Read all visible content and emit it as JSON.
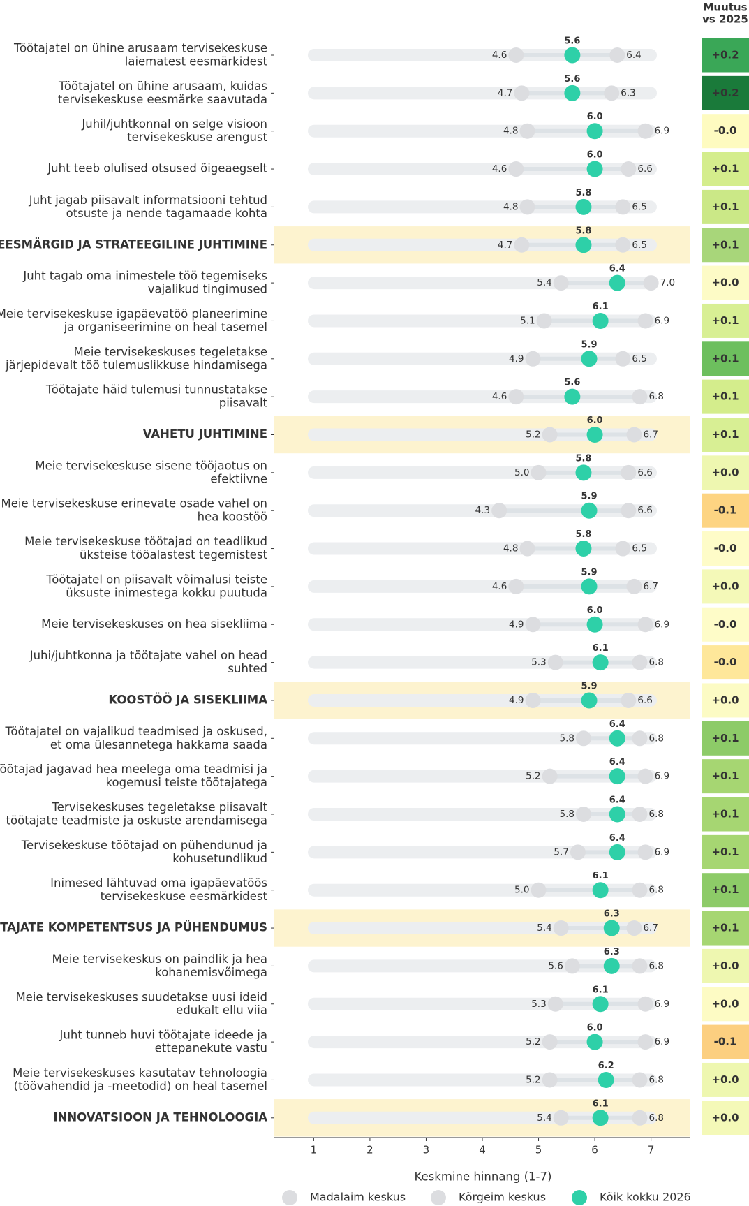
{
  "chart_data": {
    "type": "dumbbell",
    "xlabel": "Keskmine hinnang (1-7)",
    "xlim": [
      0.3,
      7.7
    ],
    "xticks": [
      1,
      2,
      3,
      4,
      5,
      6,
      7
    ],
    "categories": [
      "Töötajatel on ühine arusaam tervisekeskuse\nlaiematest eesmärkidest",
      "Töötajatel on ühine arusaam, kuidas\ntervisekeskuse eesmärke saavutada",
      "Juhil/juhtkonnal on selge visioon\ntervisekeskuse arengust",
      "Juht teeb olulised otsused õigeaegselt",
      "Juht jagab piisavalt informatsiooni tehtud\notsuste ja nende tagamaade kohta",
      "EESMÄRGID JA STRATEEGILINE JUHTIMINE",
      "Juht tagab oma inimestele töö tegemiseks\nvajalikud tingimused",
      "Meie tervisekeskuse igapäevatöö planeerimine\nja organiseerimine on heal tasemel",
      "Meie tervisekeskuses tegeletakse\njärjepidevalt töö tulemuslikkuse hindamisega",
      "Töötajate häid tulemusi tunnustatakse\npiisavalt",
      "VAHETU JUHTIMINE",
      "Meie tervisekeskuse sisene tööjaotus on\nefektiivne",
      "Meie tervisekeskuse erinevate osade vahel on\nhea koostöö",
      "Meie tervisekeskuse töötajad on teadlikud\nüksteise tööalastest tegemistest",
      "Töötajatel on piisavalt võimalusi teiste\nüksuste inimestega kokku puutuda",
      "Meie tervisekeskuses on hea sisekliima",
      "Juhi/juhtkonna ja töötajate vahel on head\nsuhted",
      "KOOSTÖÖ JA SISEKLIIMA",
      "Töötajatel on vajalikud teadmised ja oskused,\net oma ülesannetega hakkama saada",
      "Töötajad jagavad hea meelega oma teadmisi ja\nkogemusi teiste töötajatega",
      "Tervisekeskuses tegeletakse piisavalt\ntöötajate teadmiste ja oskuste arendamisega",
      "Tervisekeskuse töötajad on pühendunud ja\nkohusetundlikud",
      "Inimesed lähtuvad oma igapäevatöös\ntervisekeskuse eesmärkidest",
      "TÖÖTAJATE KOMPETENTSUS JA PÜHENDUMUS",
      "Meie tervisekeskus on paindlik ja hea\nkohanemisvõimega",
      "Meie tervisekeskuses suudetakse uusi ideid\nedukalt ellu viia",
      "Juht tunneb huvi töötajate ideede ja\nettepanekute vastu",
      "Meie tervisekeskuses kasutatav tehnoloogia\n(töövahendid ja -meetodid) on heal tasemel",
      "INNOVATSIOON JA TEHNOLOOGIA"
    ],
    "series": [
      {
        "name": "Madalaim keskus",
        "color": "#dcdde0",
        "values": [
          4.6,
          4.7,
          4.8,
          4.6,
          4.8,
          4.7,
          5.4,
          5.1,
          4.9,
          4.6,
          5.2,
          5.0,
          4.3,
          4.8,
          4.6,
          4.9,
          5.3,
          4.9,
          5.8,
          5.2,
          5.8,
          5.7,
          5.0,
          5.4,
          5.6,
          5.3,
          5.2,
          5.2,
          5.4
        ],
        "value_labels": [
          "4.6",
          "4.7",
          "4.8",
          "4.6",
          "4.8",
          "4.7",
          "5.4",
          "5.1",
          "4.9",
          "4.6",
          "5.2",
          "5.0",
          "4.3",
          "4.8",
          "4.6",
          "4.9",
          "5.3",
          "4.9",
          "5.8",
          "5.2",
          "5.8",
          "5.7",
          "5.0",
          "5.4",
          "5.6",
          "5.3",
          "5.2",
          "5.2",
          "5.4"
        ]
      },
      {
        "name": "Kõrgeim keskus",
        "color": "#dcdde0",
        "values": [
          6.4,
          6.3,
          6.9,
          6.6,
          6.5,
          6.5,
          7.0,
          6.9,
          6.5,
          6.8,
          6.7,
          6.6,
          6.6,
          6.5,
          6.7,
          6.9,
          6.8,
          6.6,
          6.8,
          6.9,
          6.8,
          6.9,
          6.8,
          6.7,
          6.8,
          6.9,
          6.9,
          6.8,
          6.8
        ],
        "value_labels": [
          "6.4",
          "6.3",
          "6.9",
          "6.6",
          "6.5",
          "6.5",
          "7.0",
          "6.9",
          "6.5",
          "6.8",
          "6.7",
          "6.6",
          "6.6",
          "6.5",
          "6.7",
          "6.9",
          "6.8",
          "6.6",
          "6.8",
          "6.9",
          "6.8",
          "6.9",
          "6.8",
          "6.7",
          "6.8",
          "6.9",
          "6.9",
          "6.8",
          "6.8"
        ]
      },
      {
        "name": "Kõik kokku 2026",
        "color": "#2ed0a8",
        "values": [
          5.6,
          5.6,
          6.0,
          6.0,
          5.8,
          5.8,
          6.4,
          6.1,
          5.9,
          5.6,
          6.0,
          5.8,
          5.9,
          5.8,
          5.9,
          6.0,
          6.1,
          5.9,
          6.4,
          6.4,
          6.4,
          6.4,
          6.1,
          6.3,
          6.3,
          6.1,
          6.0,
          6.2,
          6.1
        ],
        "value_labels": [
          "5.6",
          "5.6",
          "6.0",
          "6.0",
          "5.8",
          "5.8",
          "6.4",
          "6.1",
          "5.9",
          "5.6",
          "6.0",
          "5.8",
          "5.9",
          "5.8",
          "5.9",
          "6.0",
          "6.1",
          "5.9",
          "6.4",
          "6.4",
          "6.4",
          "6.4",
          "6.1",
          "6.3",
          "6.3",
          "6.1",
          "6.0",
          "6.2",
          "6.1"
        ]
      }
    ],
    "change": {
      "title": "Muutus\nvs 2025",
      "values": [
        0.2,
        0.2,
        0,
        0.1,
        0.1,
        0.1,
        0,
        0.1,
        0.1,
        0.1,
        0.1,
        0,
        -0.1,
        0,
        0,
        0,
        0,
        0,
        0.1,
        0.1,
        0.1,
        0.1,
        0.1,
        0.1,
        0,
        0,
        -0.1,
        0,
        0
      ],
      "value_labels": [
        "+0.2",
        "+0.2",
        "-0.0",
        "+0.1",
        "+0.1",
        "+0.1",
        "+0.0",
        "+0.1",
        "+0.1",
        "+0.1",
        "+0.1",
        "+0.0",
        "-0.1",
        "-0.0",
        "+0.0",
        "-0.0",
        "-0.0",
        "+0.0",
        "+0.1",
        "+0.1",
        "+0.1",
        "+0.1",
        "+0.1",
        "+0.1",
        "+0.0",
        "+0.0",
        "-0.1",
        "+0.0",
        "+0.0"
      ],
      "colors": [
        "#3aa757",
        "#1a7a3a",
        "#fefbc0",
        "#d4ed8c",
        "#cbe887",
        "#a8d67a",
        "#fdfbc6",
        "#d8ef94",
        "#6dbf5e",
        "#d4ed8c",
        "#d8ef94",
        "#eef7b0",
        "#fdd482",
        "#fefcc8",
        "#f4f9b8",
        "#fefcc8",
        "#fee79a",
        "#fcfbc4",
        "#8dcb68",
        "#a6d672",
        "#a6d672",
        "#a6d672",
        "#8dcb68",
        "#a6d672",
        "#eef7b0",
        "#fdfbc4",
        "#fccf80",
        "#eef7b0",
        "#f4f9b8"
      ]
    }
  }
}
